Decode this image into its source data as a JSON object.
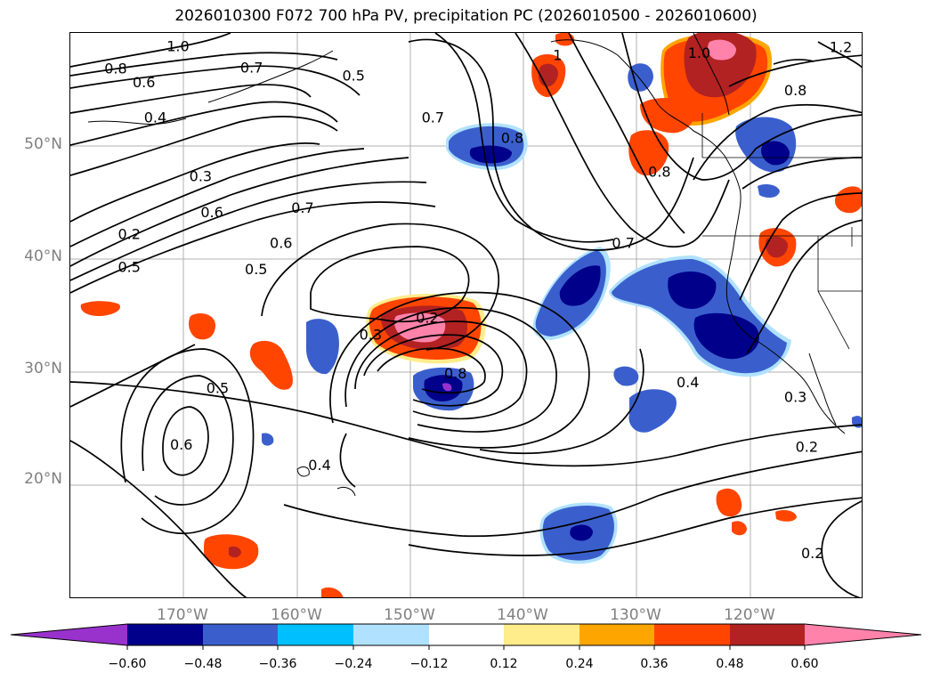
{
  "title": "2026010300 F072 700 hPa PV, precipitation PC (2026010500 - 2026010600)",
  "map": {
    "projection": "PlateCarree",
    "extent": {
      "lon_min": -180,
      "lon_max": -110,
      "lat_min": 10,
      "lat_max": 60
    },
    "lat_ticks": [
      {
        "value": 20,
        "label": "20°N"
      },
      {
        "value": 30,
        "label": "30°N"
      },
      {
        "value": 40,
        "label": "40°N"
      },
      {
        "value": 50,
        "label": "50°N"
      }
    ],
    "lon_ticks": [
      {
        "value": -170,
        "label": "170°W"
      },
      {
        "value": -160,
        "label": "160°W"
      },
      {
        "value": -150,
        "label": "150°W"
      },
      {
        "value": -140,
        "label": "140°W"
      },
      {
        "value": -130,
        "label": "130°W"
      },
      {
        "value": -120,
        "label": "120°W"
      }
    ],
    "contour_labels": [
      {
        "text": "1.0",
        "lon": -170.5,
        "lat": 58.8
      },
      {
        "text": "0.8",
        "lon": -176,
        "lat": 56.8
      },
      {
        "text": "0.6",
        "lon": -173.5,
        "lat": 55.6
      },
      {
        "text": "0.4",
        "lon": -172.5,
        "lat": 52.5
      },
      {
        "text": "0.3",
        "lon": -168.5,
        "lat": 47.3
      },
      {
        "text": "0.2",
        "lon": -174.8,
        "lat": 42.2
      },
      {
        "text": "0.5",
        "lon": -174.8,
        "lat": 39.3
      },
      {
        "text": "0.6",
        "lon": -167.5,
        "lat": 44.1
      },
      {
        "text": "0.5",
        "lon": -163.6,
        "lat": 39.1
      },
      {
        "text": "0.6",
        "lon": -161.4,
        "lat": 41.4
      },
      {
        "text": "0.7",
        "lon": -159.5,
        "lat": 44.5
      },
      {
        "text": "0.7",
        "lon": -164,
        "lat": 56.9
      },
      {
        "text": "0.5",
        "lon": -155,
        "lat": 56.2
      },
      {
        "text": "0.7",
        "lon": -148,
        "lat": 52.5
      },
      {
        "text": "0.8",
        "lon": -141,
        "lat": 50.7
      },
      {
        "text": "0.2",
        "lon": -148.5,
        "lat": 34.8
      },
      {
        "text": "0.3",
        "lon": -153.5,
        "lat": 33.3
      },
      {
        "text": "0.8",
        "lon": -146,
        "lat": 29.9
      },
      {
        "text": "0.5",
        "lon": -167,
        "lat": 28.6
      },
      {
        "text": "0.6",
        "lon": -170.2,
        "lat": 23.6
      },
      {
        "text": "0.4",
        "lon": -158,
        "lat": 21.8
      },
      {
        "text": "0.7",
        "lon": -131.2,
        "lat": 41.4
      },
      {
        "text": "0.8",
        "lon": -128,
        "lat": 47.7
      },
      {
        "text": "0.4",
        "lon": -125.5,
        "lat": 29.1
      },
      {
        "text": "0.3",
        "lon": -116,
        "lat": 27.8
      },
      {
        "text": "0.2",
        "lon": -115,
        "lat": 23.4
      },
      {
        "text": "0.2",
        "lon": -114.5,
        "lat": 14
      },
      {
        "text": "0.8",
        "lon": -116,
        "lat": 54.9
      },
      {
        "text": "1.0",
        "lon": -124.5,
        "lat": 58.2
      },
      {
        "text": "1.2",
        "lon": -112,
        "lat": 58.7
      },
      {
        "text": "1",
        "lon": -137,
        "lat": 58
      }
    ]
  },
  "colorbar": {
    "colors": [
      "#9932cc",
      "#00008b",
      "#3a5fcd",
      "#00bfff",
      "#b0e2ff",
      "#ffffff",
      "#ffec8b",
      "#ffa500",
      "#ff4500",
      "#b22222",
      "#ff82ab"
    ],
    "tick_labels": [
      "−0.60",
      "−0.48",
      "−0.36",
      "−0.24",
      "−0.12",
      "0.12",
      "0.24",
      "0.36",
      "0.48",
      "0.60"
    ]
  }
}
